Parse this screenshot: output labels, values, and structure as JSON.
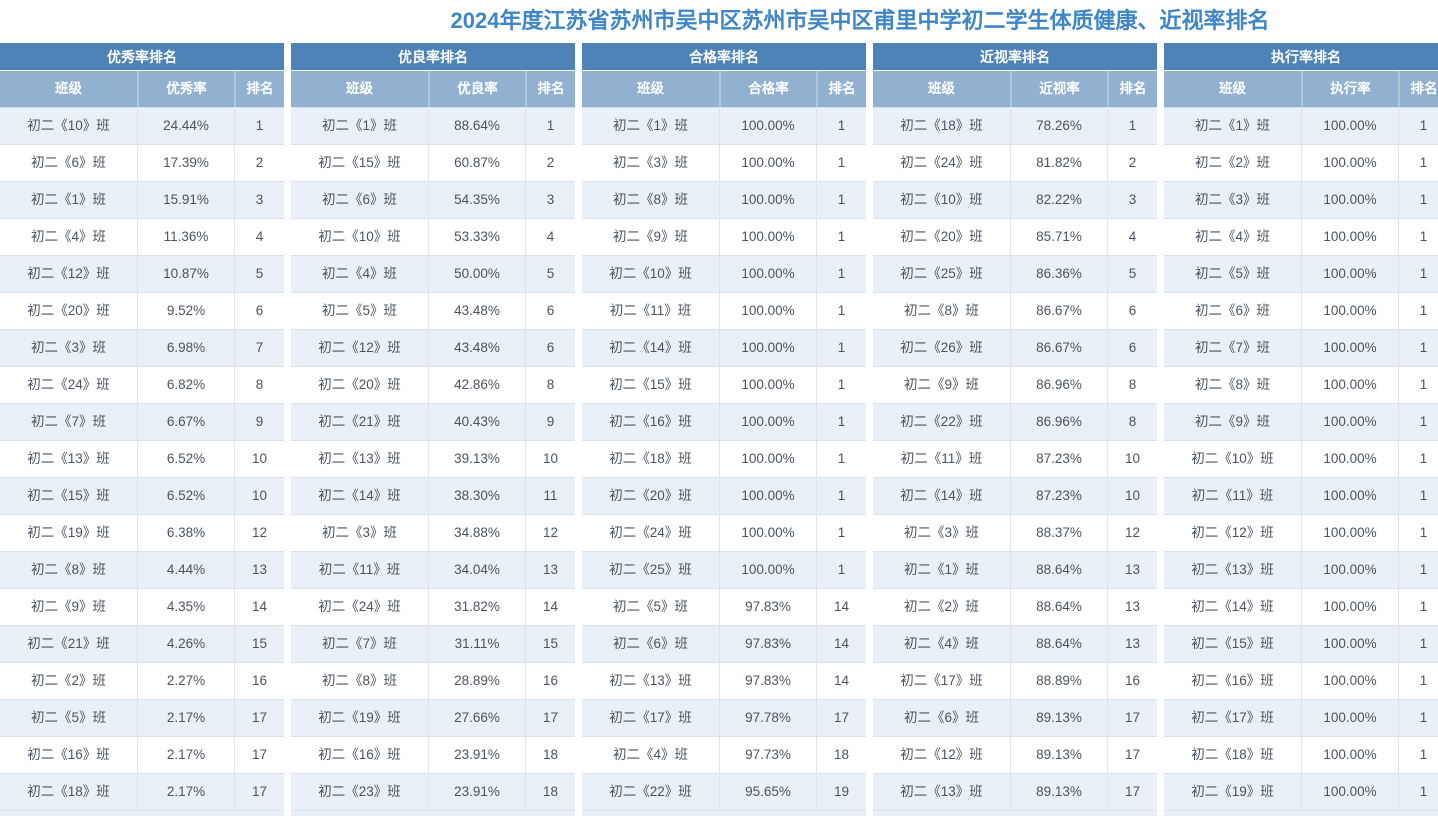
{
  "title": "2024年度江苏省苏州市吴中区苏州市吴中区甫里中学初二学生体质健康、近视率排名",
  "colors": {
    "title_text": "#3e86c5",
    "group_header_bg": "#4d83b7",
    "column_header_bg": "#92b1d1",
    "alt_row_bg": "#e9f0f8",
    "row_bg": "#ffffff"
  },
  "tables": [
    {
      "id": "excellent-rate-ranking",
      "group_header": "优秀率排名",
      "columns": [
        "班级",
        "优秀率",
        "排名"
      ],
      "rows": [
        [
          "初二《10》班",
          "24.44%",
          "1"
        ],
        [
          "初二《6》班",
          "17.39%",
          "2"
        ],
        [
          "初二《1》班",
          "15.91%",
          "3"
        ],
        [
          "初二《4》班",
          "11.36%",
          "4"
        ],
        [
          "初二《12》班",
          "10.87%",
          "5"
        ],
        [
          "初二《20》班",
          "9.52%",
          "6"
        ],
        [
          "初二《3》班",
          "6.98%",
          "7"
        ],
        [
          "初二《24》班",
          "6.82%",
          "8"
        ],
        [
          "初二《7》班",
          "6.67%",
          "9"
        ],
        [
          "初二《13》班",
          "6.52%",
          "10"
        ],
        [
          "初二《15》班",
          "6.52%",
          "10"
        ],
        [
          "初二《19》班",
          "6.38%",
          "12"
        ],
        [
          "初二《8》班",
          "4.44%",
          "13"
        ],
        [
          "初二《9》班",
          "4.35%",
          "14"
        ],
        [
          "初二《21》班",
          "4.26%",
          "15"
        ],
        [
          "初二《2》班",
          "2.27%",
          "16"
        ],
        [
          "初二《5》班",
          "2.17%",
          "17"
        ],
        [
          "初二《16》班",
          "2.17%",
          "17"
        ],
        [
          "初二《18》班",
          "2.17%",
          "17"
        ]
      ]
    },
    {
      "id": "good-rate-ranking",
      "group_header": "优良率排名",
      "columns": [
        "班级",
        "优良率",
        "排名"
      ],
      "rows": [
        [
          "初二《1》班",
          "88.64%",
          "1"
        ],
        [
          "初二《15》班",
          "60.87%",
          "2"
        ],
        [
          "初二《6》班",
          "54.35%",
          "3"
        ],
        [
          "初二《10》班",
          "53.33%",
          "4"
        ],
        [
          "初二《4》班",
          "50.00%",
          "5"
        ],
        [
          "初二《5》班",
          "43.48%",
          "6"
        ],
        [
          "初二《12》班",
          "43.48%",
          "6"
        ],
        [
          "初二《20》班",
          "42.86%",
          "8"
        ],
        [
          "初二《21》班",
          "40.43%",
          "9"
        ],
        [
          "初二《13》班",
          "39.13%",
          "10"
        ],
        [
          "初二《14》班",
          "38.30%",
          "11"
        ],
        [
          "初二《3》班",
          "34.88%",
          "12"
        ],
        [
          "初二《11》班",
          "34.04%",
          "13"
        ],
        [
          "初二《24》班",
          "31.82%",
          "14"
        ],
        [
          "初二《7》班",
          "31.11%",
          "15"
        ],
        [
          "初二《8》班",
          "28.89%",
          "16"
        ],
        [
          "初二《19》班",
          "27.66%",
          "17"
        ],
        [
          "初二《16》班",
          "23.91%",
          "18"
        ],
        [
          "初二《23》班",
          "23.91%",
          "18"
        ]
      ]
    },
    {
      "id": "pass-rate-ranking",
      "group_header": "合格率排名",
      "columns": [
        "班级",
        "合格率",
        "排名"
      ],
      "rows": [
        [
          "初二《1》班",
          "100.00%",
          "1"
        ],
        [
          "初二《3》班",
          "100.00%",
          "1"
        ],
        [
          "初二《8》班",
          "100.00%",
          "1"
        ],
        [
          "初二《9》班",
          "100.00%",
          "1"
        ],
        [
          "初二《10》班",
          "100.00%",
          "1"
        ],
        [
          "初二《11》班",
          "100.00%",
          "1"
        ],
        [
          "初二《14》班",
          "100.00%",
          "1"
        ],
        [
          "初二《15》班",
          "100.00%",
          "1"
        ],
        [
          "初二《16》班",
          "100.00%",
          "1"
        ],
        [
          "初二《18》班",
          "100.00%",
          "1"
        ],
        [
          "初二《20》班",
          "100.00%",
          "1"
        ],
        [
          "初二《24》班",
          "100.00%",
          "1"
        ],
        [
          "初二《25》班",
          "100.00%",
          "1"
        ],
        [
          "初二《5》班",
          "97.83%",
          "14"
        ],
        [
          "初二《6》班",
          "97.83%",
          "14"
        ],
        [
          "初二《13》班",
          "97.83%",
          "14"
        ],
        [
          "初二《17》班",
          "97.78%",
          "17"
        ],
        [
          "初二《4》班",
          "97.73%",
          "18"
        ],
        [
          "初二《22》班",
          "95.65%",
          "19"
        ]
      ]
    },
    {
      "id": "myopia-rate-ranking",
      "group_header": "近视率排名",
      "columns": [
        "班级",
        "近视率",
        "排名"
      ],
      "rows": [
        [
          "初二《18》班",
          "78.26%",
          "1"
        ],
        [
          "初二《24》班",
          "81.82%",
          "2"
        ],
        [
          "初二《10》班",
          "82.22%",
          "3"
        ],
        [
          "初二《20》班",
          "85.71%",
          "4"
        ],
        [
          "初二《25》班",
          "86.36%",
          "5"
        ],
        [
          "初二《8》班",
          "86.67%",
          "6"
        ],
        [
          "初二《26》班",
          "86.67%",
          "6"
        ],
        [
          "初二《9》班",
          "86.96%",
          "8"
        ],
        [
          "初二《22》班",
          "86.96%",
          "8"
        ],
        [
          "初二《11》班",
          "87.23%",
          "10"
        ],
        [
          "初二《14》班",
          "87.23%",
          "10"
        ],
        [
          "初二《3》班",
          "88.37%",
          "12"
        ],
        [
          "初二《1》班",
          "88.64%",
          "13"
        ],
        [
          "初二《2》班",
          "88.64%",
          "13"
        ],
        [
          "初二《4》班",
          "88.64%",
          "13"
        ],
        [
          "初二《17》班",
          "88.89%",
          "16"
        ],
        [
          "初二《6》班",
          "89.13%",
          "17"
        ],
        [
          "初二《12》班",
          "89.13%",
          "17"
        ],
        [
          "初二《13》班",
          "89.13%",
          "17"
        ]
      ]
    },
    {
      "id": "execution-rate-ranking",
      "group_header": "执行率排名",
      "columns": [
        "班级",
        "执行率",
        "排名"
      ],
      "rows": [
        [
          "初二《1》班",
          "100.00%",
          "1"
        ],
        [
          "初二《2》班",
          "100.00%",
          "1"
        ],
        [
          "初二《3》班",
          "100.00%",
          "1"
        ],
        [
          "初二《4》班",
          "100.00%",
          "1"
        ],
        [
          "初二《5》班",
          "100.00%",
          "1"
        ],
        [
          "初二《6》班",
          "100.00%",
          "1"
        ],
        [
          "初二《7》班",
          "100.00%",
          "1"
        ],
        [
          "初二《8》班",
          "100.00%",
          "1"
        ],
        [
          "初二《9》班",
          "100.00%",
          "1"
        ],
        [
          "初二《10》班",
          "100.00%",
          "1"
        ],
        [
          "初二《11》班",
          "100.00%",
          "1"
        ],
        [
          "初二《12》班",
          "100.00%",
          "1"
        ],
        [
          "初二《13》班",
          "100.00%",
          "1"
        ],
        [
          "初二《14》班",
          "100.00%",
          "1"
        ],
        [
          "初二《15》班",
          "100.00%",
          "1"
        ],
        [
          "初二《16》班",
          "100.00%",
          "1"
        ],
        [
          "初二《17》班",
          "100.00%",
          "1"
        ],
        [
          "初二《18》班",
          "100.00%",
          "1"
        ],
        [
          "初二《19》班",
          "100.00%",
          "1"
        ]
      ]
    }
  ]
}
